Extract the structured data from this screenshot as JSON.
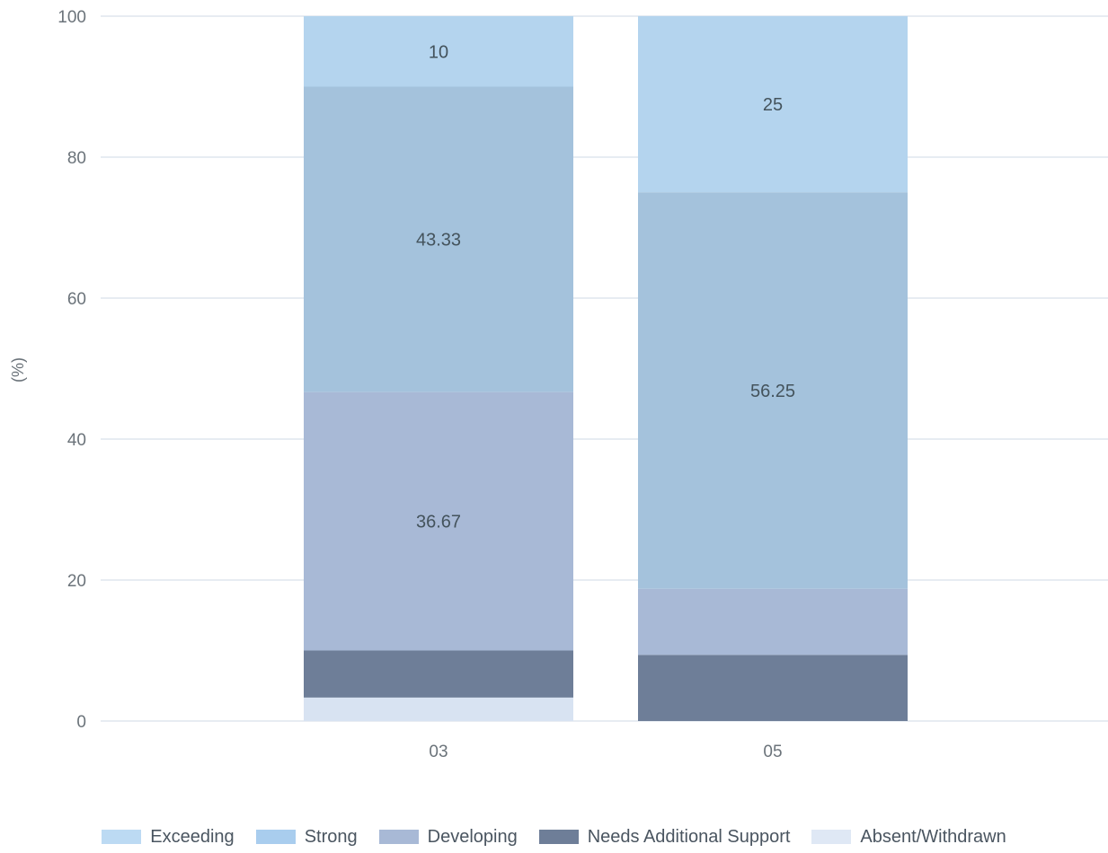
{
  "chart_data": {
    "type": "bar",
    "stacked": true,
    "title": "",
    "xlabel": "",
    "ylabel": "(%)",
    "ylim": [
      0,
      100
    ],
    "yticks": [
      "0",
      "20",
      "40",
      "60",
      "80",
      "100"
    ],
    "categories": [
      "03",
      "05"
    ],
    "grid": true,
    "legend_position": "bottom",
    "series": [
      {
        "name": "Absent/Withdrawn",
        "color": "#d8e3f2",
        "values": [
          3.33,
          0
        ],
        "labels": [
          "",
          ""
        ]
      },
      {
        "name": "Needs Additional Support",
        "color": "#6e7e98",
        "values": [
          6.67,
          9.38
        ],
        "labels": [
          "",
          ""
        ]
      },
      {
        "name": "Developing",
        "color": "#a8b9d6",
        "values": [
          36.67,
          9.38
        ],
        "labels": [
          "36.67",
          ""
        ]
      },
      {
        "name": "Strong",
        "color": "#a4c2dc",
        "values": [
          43.33,
          56.25
        ],
        "labels": [
          "43.33",
          "56.25"
        ]
      },
      {
        "name": "Exceeding",
        "color": "#b4d4ee",
        "values": [
          10,
          25
        ],
        "labels": [
          "10",
          "25"
        ]
      }
    ]
  },
  "legend": {
    "items": [
      {
        "label": "Exceeding",
        "color": "#bcdaf3"
      },
      {
        "label": "Strong",
        "color": "#a9cdee"
      },
      {
        "label": "Developing",
        "color": "#a8b9d6"
      },
      {
        "label": "Needs Additional Support",
        "color": "#6e7e98"
      },
      {
        "label": "Absent/Withdrawn",
        "color": "#dfe8f5"
      }
    ]
  }
}
